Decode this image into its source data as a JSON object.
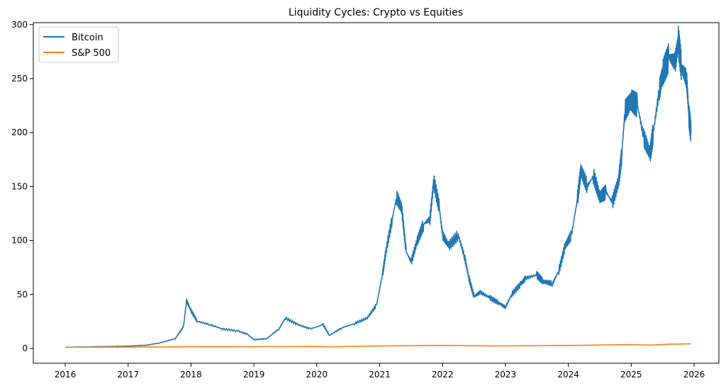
{
  "chart_data": {
    "type": "line",
    "title": "Liquidity Cycles: Crypto vs Equities",
    "xlabel": "",
    "ylabel": "",
    "xlim": [
      2015.5,
      2026.4
    ],
    "ylim": [
      -14,
      302
    ],
    "xticks": [
      "2016",
      "2017",
      "2018",
      "2019",
      "2020",
      "2021",
      "2022",
      "2023",
      "2024",
      "2025",
      "2026"
    ],
    "yticks": [
      "0",
      "50",
      "100",
      "150",
      "200",
      "250",
      "300"
    ],
    "grid": false,
    "legend": "top-left",
    "series": [
      {
        "name": "Bitcoin",
        "color": "#1f77b4",
        "x": [
          2016.0,
          2016.5,
          2017.0,
          2017.3,
          2017.5,
          2017.75,
          2017.88,
          2017.93,
          2018.0,
          2018.1,
          2018.3,
          2018.5,
          2018.75,
          2018.9,
          2019.0,
          2019.2,
          2019.4,
          2019.5,
          2019.7,
          2019.9,
          2020.1,
          2020.2,
          2020.4,
          2020.6,
          2020.8,
          2020.95,
          2021.05,
          2021.1,
          2021.2,
          2021.27,
          2021.35,
          2021.42,
          2021.5,
          2021.6,
          2021.7,
          2021.8,
          2021.86,
          2021.95,
          2022.0,
          2022.1,
          2022.25,
          2022.35,
          2022.42,
          2022.5,
          2022.6,
          2022.75,
          2022.9,
          2023.0,
          2023.1,
          2023.25,
          2023.32,
          2023.5,
          2023.6,
          2023.75,
          2023.85,
          2023.95,
          2024.05,
          2024.15,
          2024.2,
          2024.3,
          2024.4,
          2024.5,
          2024.6,
          2024.7,
          2024.8,
          2024.85,
          2024.9,
          2025.0,
          2025.1,
          2025.2,
          2025.3,
          2025.35,
          2025.45,
          2025.5,
          2025.6,
          2025.7,
          2025.75,
          2025.8,
          2025.88,
          2025.92,
          2025.95
        ],
        "y": [
          1,
          1.5,
          2,
          3,
          5,
          9,
          20,
          44,
          35,
          25,
          22,
          18,
          16,
          13,
          8,
          9,
          18,
          28,
          22,
          18,
          22,
          12,
          19,
          23,
          28,
          40,
          70,
          90,
          120,
          140,
          130,
          90,
          80,
          100,
          115,
          120,
          155,
          130,
          105,
          95,
          105,
          85,
          65,
          48,
          52,
          47,
          42,
          38,
          50,
          60,
          65,
          68,
          62,
          60,
          72,
          95,
          105,
          140,
          165,
          150,
          160,
          140,
          145,
          135,
          155,
          180,
          220,
          230,
          225,
          195,
          180,
          200,
          240,
          255,
          270,
          265,
          285,
          260,
          250,
          215,
          200
        ]
      },
      {
        "name": "S&P 500",
        "color": "#ff7f0e",
        "x": [
          2016.0,
          2017.0,
          2018.0,
          2019.0,
          2020.0,
          2020.2,
          2020.5,
          2021.0,
          2022.0,
          2022.8,
          2023.5,
          2024.0,
          2025.0,
          2025.3,
          2025.6,
          2025.95
        ],
        "y": [
          1,
          1.2,
          1.5,
          1.5,
          1.8,
          1.3,
          1.8,
          2.2,
          2.7,
          2.2,
          2.4,
          2.7,
          3.5,
          3.0,
          3.8,
          4.2
        ]
      }
    ]
  }
}
